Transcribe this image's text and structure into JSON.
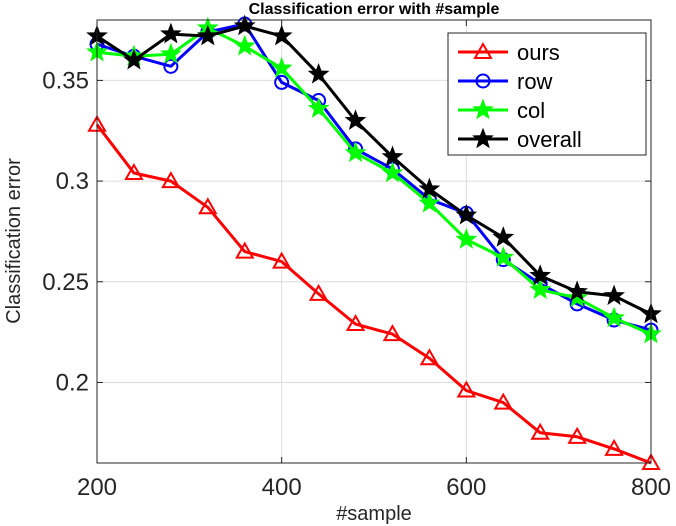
{
  "chart_data": {
    "type": "line",
    "title": "Classification error with #sample",
    "xlabel": "#sample",
    "ylabel": "Classification error",
    "xlim": [
      200,
      800
    ],
    "ylim": [
      0.16,
      0.38
    ],
    "xticks": [
      200,
      400,
      600,
      800
    ],
    "yticks": [
      0.2,
      0.25,
      0.3,
      0.35
    ],
    "xtick_labels": [
      "200",
      "400",
      "600",
      "800"
    ],
    "ytick_labels": [
      "0.2",
      "0.25",
      "0.3",
      "0.35"
    ],
    "grid": true,
    "legend_position": "top-right",
    "x": [
      200,
      240,
      280,
      320,
      360,
      400,
      440,
      480,
      520,
      560,
      600,
      640,
      680,
      720,
      760,
      800
    ],
    "series": [
      {
        "name": "ours",
        "color": "#ff0000",
        "marker": "triangle",
        "values": [
          0.328,
          0.304,
          0.3,
          0.287,
          0.265,
          0.26,
          0.244,
          0.229,
          0.224,
          0.212,
          0.196,
          0.19,
          0.175,
          0.173,
          0.167,
          0.16
        ]
      },
      {
        "name": "row",
        "color": "#0000ff",
        "marker": "circle",
        "values": [
          0.368,
          0.362,
          0.357,
          0.374,
          0.378,
          0.349,
          0.34,
          0.316,
          0.306,
          0.291,
          0.284,
          0.261,
          0.249,
          0.239,
          0.231,
          0.226
        ]
      },
      {
        "name": "col",
        "color": "#00ff00",
        "marker": "star",
        "values": [
          0.364,
          0.362,
          0.363,
          0.376,
          0.367,
          0.356,
          0.336,
          0.314,
          0.304,
          0.289,
          0.271,
          0.262,
          0.246,
          0.242,
          0.232,
          0.224
        ]
      },
      {
        "name": "overall",
        "color": "#000000",
        "marker": "star",
        "values": [
          0.372,
          0.36,
          0.373,
          0.372,
          0.377,
          0.372,
          0.353,
          0.33,
          0.312,
          0.296,
          0.283,
          0.272,
          0.253,
          0.245,
          0.243,
          0.234
        ]
      }
    ]
  }
}
